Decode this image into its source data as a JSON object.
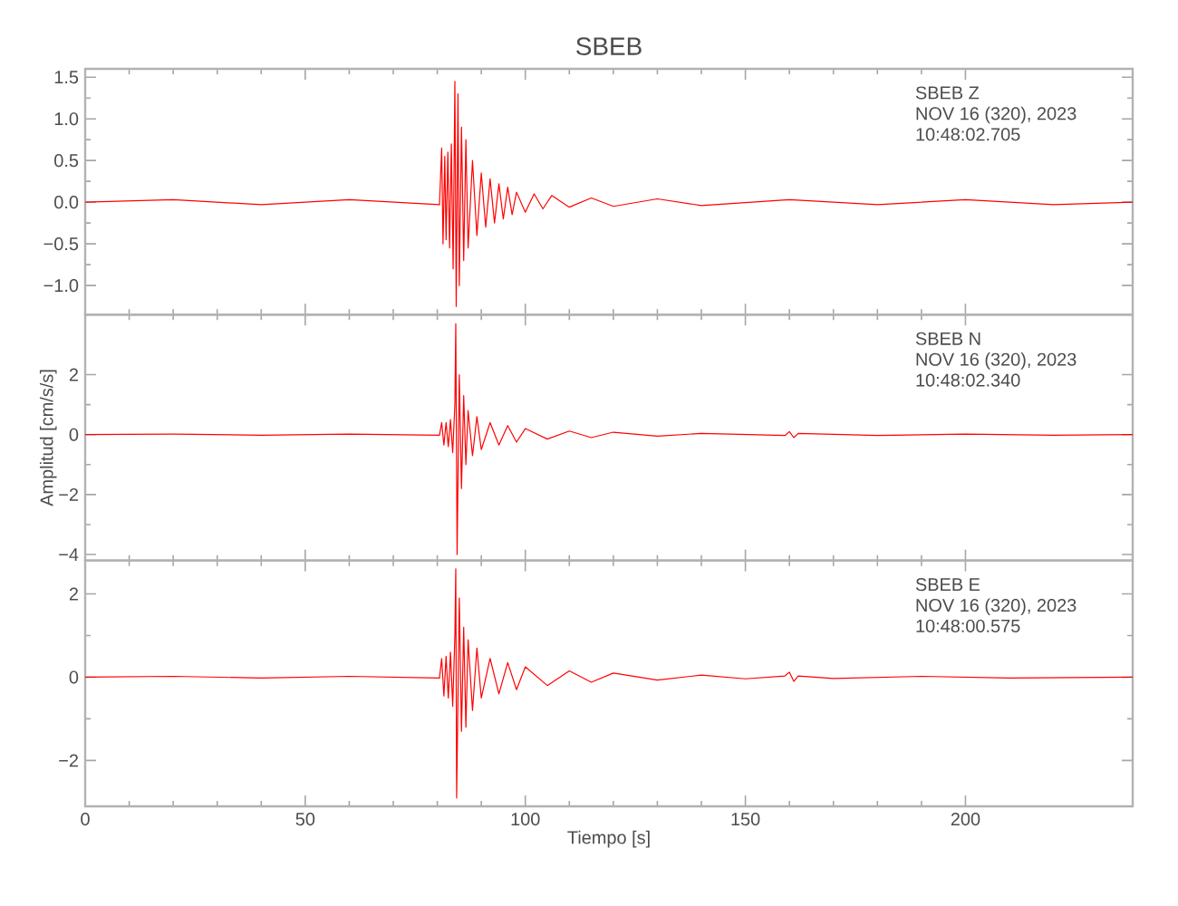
{
  "chart_data": [
    {
      "type": "line",
      "title": "SBEB",
      "xlim": [
        0,
        238
      ],
      "xticks": [
        0,
        50,
        100,
        150,
        200
      ],
      "ylim": [
        -1.35,
        1.6
      ],
      "tick_labels": "y",
      "yticks": [
        {
          "value": -1,
          "label": "−1.0"
        },
        {
          "value": -0.5,
          "label": "−0.5"
        },
        {
          "value": 0,
          "label": "0.0"
        },
        0.5,
        {
          "value": 1,
          "label": "1.0"
        },
        1.5
      ],
      "annotations": [
        "SBEB   Z",
        "NOV 16 (320), 2023",
        "10:48:02.705"
      ],
      "series": [
        {
          "color": "#ff0000",
          "x": [
            0,
            20,
            40,
            60,
            80.5,
            81,
            81.3,
            81.7,
            82,
            82.4,
            82.8,
            83.2,
            83.6,
            84,
            84.3,
            84.7,
            85,
            85.5,
            86,
            86.5,
            87,
            88,
            89,
            90,
            91,
            92,
            93,
            94,
            95,
            96,
            97,
            98,
            100,
            102,
            104,
            106,
            110,
            115,
            120,
            130,
            140,
            160,
            180,
            200,
            220,
            238
          ],
          "values": [
            0,
            0.03,
            -0.03,
            0.03,
            -0.03,
            0.65,
            -0.5,
            0.55,
            -0.45,
            0.6,
            -0.55,
            0.7,
            -0.8,
            1.45,
            -1.25,
            1.3,
            -1.0,
            0.9,
            -0.7,
            0.75,
            -0.55,
            0.5,
            -0.4,
            0.35,
            -0.3,
            0.28,
            -0.25,
            0.22,
            -0.2,
            0.18,
            -0.15,
            0.12,
            -0.12,
            0.1,
            -0.08,
            0.08,
            -0.06,
            0.05,
            -0.05,
            0.04,
            -0.04,
            0.03,
            -0.03,
            0.03,
            -0.03,
            0
          ]
        }
      ]
    },
    {
      "type": "line",
      "ylabel": "Amplitud [cm/s/s]",
      "xlim": [
        0,
        238
      ],
      "xticks": [
        0,
        50,
        100,
        150,
        200
      ],
      "ylim": [
        -4.2,
        4.0
      ],
      "tick_labels": "y",
      "yticks": [
        {
          "value": -4,
          "label": "−4"
        },
        {
          "value": -2,
          "label": "−2"
        },
        0,
        2
      ],
      "annotations": [
        "SBEB   N",
        "NOV 16 (320), 2023",
        "10:48:02.340"
      ],
      "series": [
        {
          "color": "#ff0000",
          "x": [
            0,
            20,
            40,
            60,
            80.5,
            81,
            81.5,
            82,
            82.5,
            83,
            83.5,
            84,
            84.2,
            84.5,
            85,
            85.5,
            86,
            86.5,
            87,
            88,
            89,
            90,
            92,
            94,
            96,
            98,
            100,
            105,
            110,
            115,
            120,
            130,
            140,
            159,
            160,
            161,
            162,
            180,
            200,
            220,
            238
          ],
          "values": [
            0,
            0.02,
            -0.02,
            0.02,
            -0.02,
            0.4,
            -0.35,
            0.4,
            -0.4,
            0.5,
            -0.6,
            1.0,
            3.7,
            -4.0,
            2.0,
            -1.8,
            1.3,
            -1.0,
            0.8,
            -0.7,
            0.6,
            -0.5,
            0.4,
            -0.35,
            0.3,
            -0.25,
            0.2,
            -0.15,
            0.12,
            -0.1,
            0.08,
            -0.05,
            0.04,
            -0.03,
            0.1,
            -0.1,
            0.04,
            -0.03,
            0.02,
            -0.02,
            0
          ]
        }
      ]
    },
    {
      "type": "line",
      "xlabel": "Tiempo [s]",
      "xlim": [
        0,
        238
      ],
      "xticks": [
        0,
        50,
        100,
        150,
        200
      ],
      "ylim": [
        -3.1,
        2.8
      ],
      "yticks": [
        {
          "value": -2,
          "label": "−2"
        },
        0,
        2
      ],
      "annotations": [
        "SBEB   E",
        "NOV 16 (320), 2023",
        "10:48:00.575"
      ],
      "series": [
        {
          "color": "#ff0000",
          "x": [
            0,
            20,
            40,
            60,
            80.5,
            81,
            81.5,
            82,
            82.5,
            83,
            83.5,
            84,
            84.2,
            84.4,
            85,
            85.5,
            86,
            86.5,
            87,
            88,
            89,
            90,
            92,
            94,
            96,
            98,
            100,
            105,
            110,
            115,
            120,
            130,
            140,
            150,
            159,
            160,
            161,
            162,
            170,
            190,
            210,
            238
          ],
          "values": [
            0,
            0.02,
            -0.02,
            0.02,
            -0.02,
            0.45,
            -0.45,
            0.5,
            -0.5,
            0.6,
            -0.7,
            1.0,
            2.6,
            -2.9,
            1.9,
            -1.3,
            1.2,
            -1.2,
            0.9,
            -0.8,
            0.7,
            -0.5,
            0.45,
            -0.4,
            0.35,
            -0.3,
            0.25,
            -0.2,
            0.15,
            -0.12,
            0.1,
            -0.07,
            0.05,
            -0.04,
            0.03,
            0.12,
            -0.1,
            0.03,
            -0.03,
            0.02,
            -0.02,
            0
          ]
        }
      ]
    }
  ]
}
